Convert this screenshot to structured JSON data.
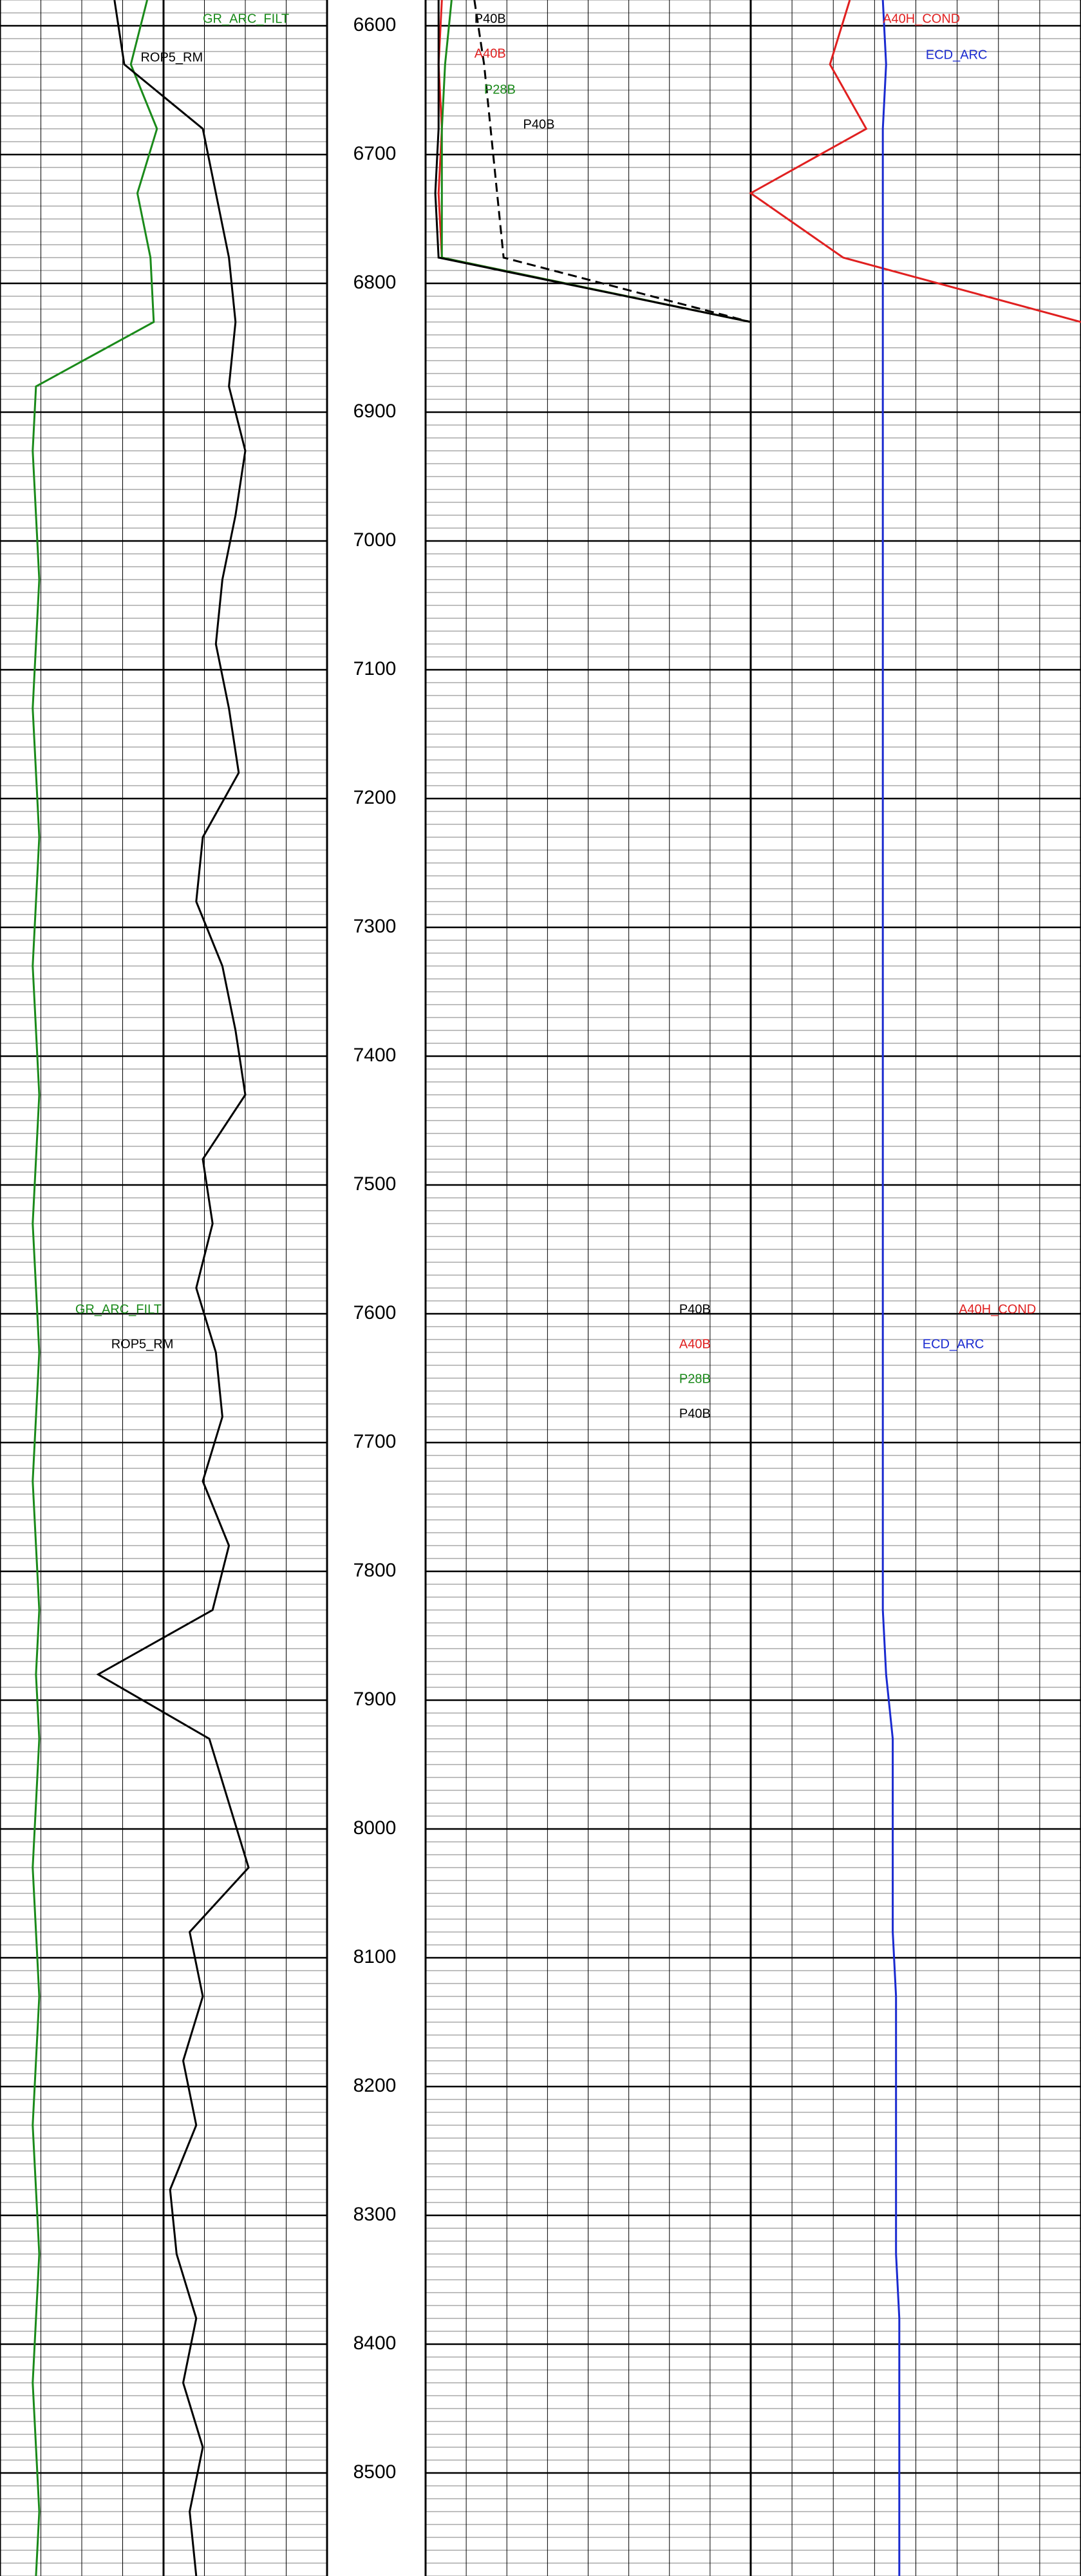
{
  "chart_data": {
    "type": "well-log",
    "x": [
      6580,
      6630,
      6680,
      6730,
      6780,
      6830,
      6880,
      6930,
      6980,
      7030,
      7080,
      7130,
      7180,
      7230,
      7280,
      7330,
      7380,
      7430,
      7480,
      7530,
      7580,
      7630,
      7680,
      7730,
      7780,
      7830,
      7880,
      7930,
      7980,
      8030,
      8080,
      8130,
      8180,
      8230,
      8280,
      8330,
      8380,
      8430,
      8480,
      8530,
      8580
    ],
    "xlim": [
      6580,
      8580
    ],
    "xticks": [
      6600,
      6700,
      6800,
      6900,
      7000,
      7100,
      7200,
      7300,
      7400,
      7500,
      7600,
      7700,
      7800,
      7900,
      8000,
      8100,
      8200,
      8300,
      8400,
      8500
    ],
    "ylim": [
      0,
      100
    ],
    "grid": true,
    "series": [
      {
        "name": "GR_ARC_FILT",
        "color": "#1a8a1a",
        "track": 1,
        "values": [
          45,
          40,
          48,
          42,
          46,
          47,
          11,
          10,
          11,
          12,
          11,
          10,
          11,
          12,
          11,
          10,
          11,
          12,
          11,
          10,
          11,
          12,
          11,
          10,
          11,
          12,
          11,
          12,
          11,
          10,
          11,
          12,
          11,
          10,
          11,
          12,
          11,
          10,
          11,
          12,
          11
        ]
      },
      {
        "name": "ROP5_RM",
        "color": "#000000",
        "track": 1,
        "values": [
          35,
          38,
          62,
          66,
          70,
          72,
          70,
          75,
          72,
          68,
          66,
          70,
          73,
          62,
          60,
          68,
          72,
          75,
          62,
          65,
          60,
          66,
          68,
          62,
          70,
          65,
          30,
          64,
          70,
          76,
          58,
          62,
          56,
          60,
          52,
          54,
          60,
          56,
          62,
          58,
          60
        ]
      },
      {
        "name": "P40B",
        "color": "#000000",
        "track": 2,
        "values": [
          15,
          18,
          20,
          22,
          24,
          100,
          null,
          null,
          null,
          null,
          null,
          null,
          null,
          null,
          null,
          null,
          null,
          null,
          null,
          null,
          null,
          null,
          null,
          null,
          null,
          null,
          null,
          null,
          null,
          null,
          null,
          null,
          null,
          null,
          null,
          null,
          null,
          null,
          null,
          null,
          null
        ]
      },
      {
        "name": "A40B",
        "color": "#e02020",
        "track": 2,
        "values": [
          5,
          4,
          5,
          4,
          5,
          100,
          null,
          null,
          null,
          null,
          null,
          null,
          null,
          null,
          null,
          null,
          null,
          null,
          null,
          null,
          null,
          null,
          null,
          null,
          null,
          null,
          null,
          null,
          null,
          null,
          null,
          null,
          null,
          null,
          null,
          null,
          null,
          null,
          null,
          null,
          null
        ]
      },
      {
        "name": "P28B",
        "color": "#1a8a1a",
        "track": 2,
        "values": [
          8,
          6,
          5,
          5,
          5,
          100,
          null,
          null,
          null,
          null,
          null,
          null,
          null,
          null,
          null,
          null,
          null,
          null,
          null,
          null,
          null,
          null,
          null,
          null,
          null,
          null,
          null,
          null,
          null,
          null,
          null,
          null,
          null,
          null,
          null,
          null,
          null,
          null,
          null,
          null,
          null
        ]
      },
      {
        "name": "P40B",
        "color": "#000000",
        "track": 2,
        "values": [
          4,
          4,
          4,
          3,
          4,
          100,
          null,
          null,
          null,
          null,
          null,
          null,
          null,
          null,
          null,
          null,
          null,
          null,
          null,
          null,
          null,
          null,
          null,
          null,
          null,
          null,
          null,
          null,
          null,
          null,
          null,
          null,
          null,
          null,
          null,
          null,
          null,
          null,
          null,
          null,
          null
        ]
      },
      {
        "name": "A40H_COND",
        "color": "#e02020",
        "track": 3,
        "values": [
          30,
          24,
          35,
          0,
          28,
          100,
          null,
          null,
          null,
          null,
          null,
          null,
          null,
          null,
          null,
          null,
          null,
          null,
          null,
          null,
          null,
          null,
          null,
          null,
          null,
          null,
          null,
          null,
          null,
          null,
          null,
          null,
          null,
          null,
          null,
          null,
          null,
          null,
          null,
          null,
          null
        ]
      },
      {
        "name": "ECD_ARC",
        "color": "#1a2ad0",
        "track": 3,
        "values": [
          40,
          41,
          40,
          40,
          40,
          40,
          40,
          40,
          40,
          40,
          40,
          40,
          40,
          40,
          40,
          40,
          40,
          40,
          40,
          40,
          40,
          40,
          40,
          40,
          40,
          40,
          41,
          43,
          43,
          43,
          43,
          44,
          44,
          44,
          44,
          44,
          45,
          45,
          45,
          45,
          45
        ]
      }
    ]
  }
}
